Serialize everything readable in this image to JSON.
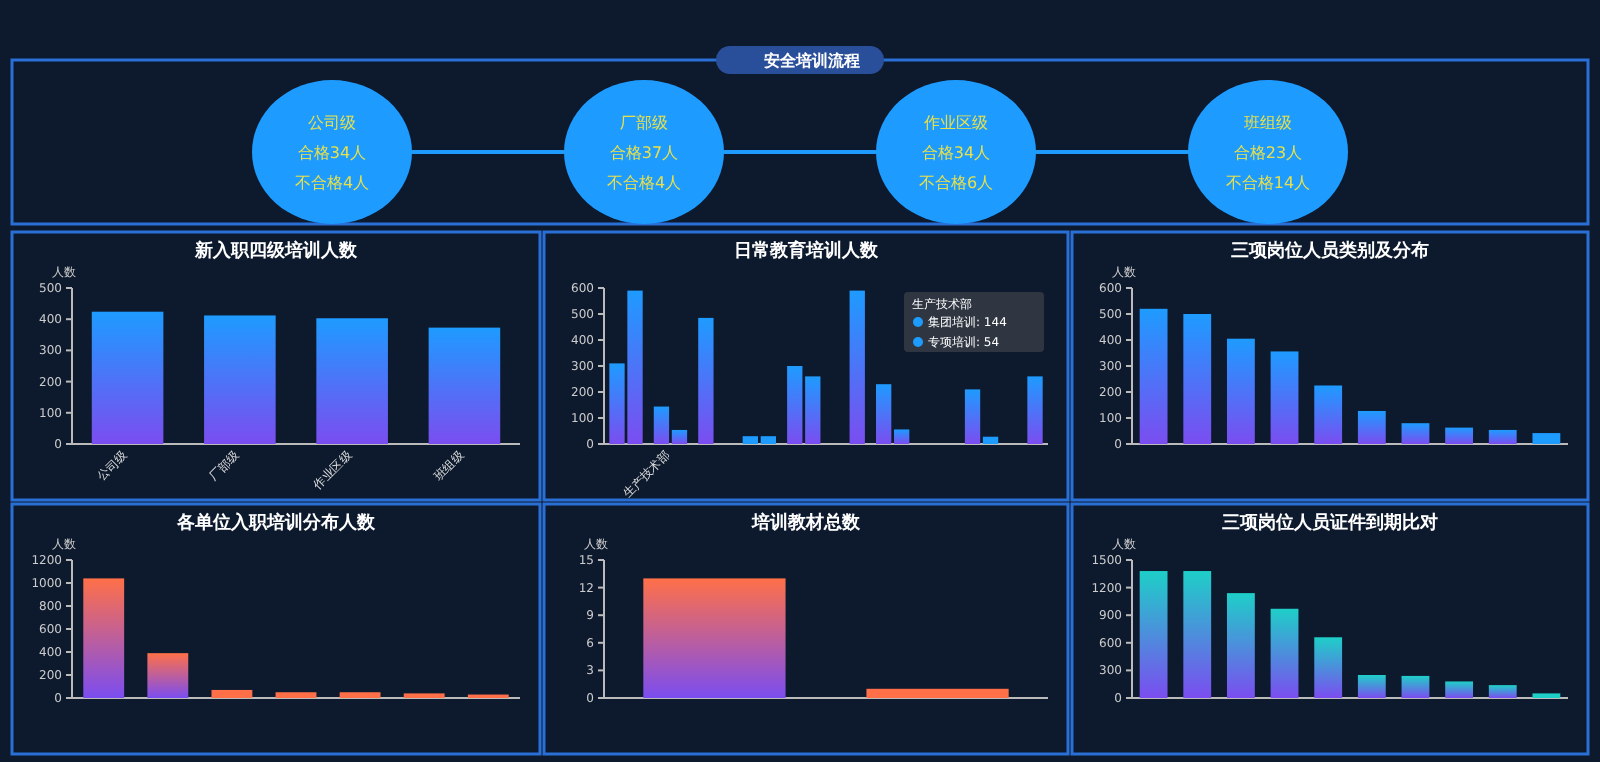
{
  "chart_data": [
    {
      "type": "other",
      "title": "安全培训流程",
      "categories": [
        "公司级",
        "厂部级",
        "作业区级",
        "班组级"
      ],
      "annotations": [
        "合格34人",
        "不合格4人",
        "合格37人",
        "不合格4人",
        "合格34人",
        "不合格6人",
        "合格23人",
        "不合格14人"
      ]
    },
    {
      "type": "bar",
      "title": "新入职四级培训人数",
      "ylabel": "人数",
      "categories": [
        "公司级",
        "厂部级",
        "作业区级",
        "班组级"
      ],
      "series": [
        {
          "color": "#1e9bff",
          "values": [
            424,
            412,
            403,
            373
          ]
        }
      ],
      "ylim": [
        0,
        500
      ],
      "yticks": [
        0,
        100,
        200,
        300,
        400,
        500
      ]
    },
    {
      "type": "bar",
      "title": "日常教育培训人数",
      "categories": [
        null,
        "生产技术部",
        null,
        null,
        null,
        null,
        null,
        null,
        null,
        null
      ],
      "series": [
        {
          "name": "集团培训: 144",
          "color": "#1e9bff",
          "values": [
            310,
            144,
            485,
            30,
            300,
            null,
            230,
            null,
            210,
            null
          ]
        },
        {
          "name": "专项培训: 54",
          "color": "#1e9bff",
          "values": [
            590,
            54,
            null,
            30,
            260,
            590,
            56,
            null,
            28,
            260
          ]
        }
      ],
      "legend_title": "生产技术部",
      "legend": "top right",
      "ylim": [
        0,
        600
      ],
      "yticks": [
        0,
        100,
        200,
        300,
        400,
        500,
        600
      ]
    },
    {
      "type": "bar",
      "title": "三项岗位人员类别及分布",
      "ylabel": "人数",
      "categories": [
        null,
        null,
        null,
        null,
        null,
        null,
        null,
        null,
        null,
        null
      ],
      "series": [
        {
          "color": "#1e9bff",
          "values": [
            520,
            500,
            405,
            356,
            225,
            127,
            80,
            63,
            54,
            42
          ]
        }
      ],
      "ylim": [
        0,
        600
      ],
      "yticks": [
        0,
        100,
        200,
        300,
        400,
        500,
        600
      ]
    },
    {
      "type": "bar",
      "title": "各单位入职培训分布人数",
      "ylabel": "人数",
      "categories": [
        null,
        null,
        null,
        null,
        null,
        null,
        null
      ],
      "series": [
        {
          "color": "#ff7048",
          "values": [
            1040,
            390,
            70,
            50,
            50,
            40,
            30
          ]
        }
      ],
      "ylim": [
        0,
        1200
      ],
      "yticks": [
        0,
        200,
        400,
        600,
        800,
        1000,
        1200
      ]
    },
    {
      "type": "bar",
      "title": "培训教材总数",
      "ylabel": "人数",
      "categories": [
        null,
        null
      ],
      "series": [
        {
          "color": "#ff7048",
          "values": [
            13,
            1
          ]
        }
      ],
      "ylim": [
        0,
        15
      ],
      "yticks": [
        0,
        3,
        6,
        9,
        12,
        15
      ]
    },
    {
      "type": "bar",
      "title": "三项岗位人员证件到期比对",
      "ylabel": "人数",
      "categories": [
        null,
        null,
        null,
        null,
        null,
        null,
        null,
        null,
        null,
        null
      ],
      "series": [
        {
          "color": "#1ecfc8",
          "values": [
            1380,
            1380,
            1140,
            970,
            660,
            250,
            240,
            180,
            140,
            50
          ]
        }
      ],
      "ylim": [
        0,
        1500
      ],
      "yticks": [
        0,
        300,
        600,
        900,
        1200,
        1500
      ]
    }
  ]
}
